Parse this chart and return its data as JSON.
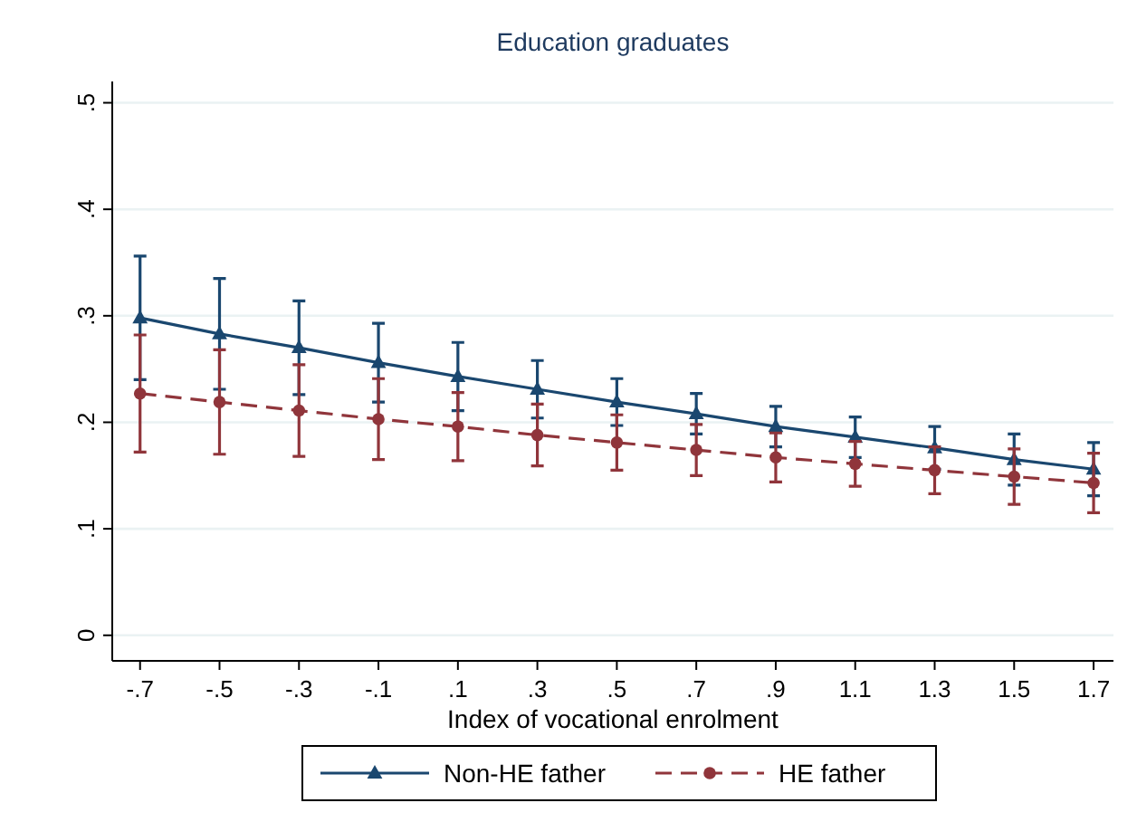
{
  "chart_data": {
    "type": "line",
    "title": "Education graduates",
    "xlabel": "Index of vocational enrolment",
    "x": [
      -0.7,
      -0.5,
      -0.3,
      -0.1,
      0.1,
      0.3,
      0.5,
      0.7,
      0.9,
      1.1,
      1.3,
      1.5,
      1.7
    ],
    "xlim": [
      -0.77,
      1.75
    ],
    "xticks": [
      {
        "value": -0.7,
        "label": "-.7"
      },
      {
        "value": -0.5,
        "label": "-.5"
      },
      {
        "value": -0.3,
        "label": "-.3"
      },
      {
        "value": -0.1,
        "label": "-.1"
      },
      {
        "value": 0.1,
        "label": ".1"
      },
      {
        "value": 0.3,
        "label": ".3"
      },
      {
        "value": 0.5,
        "label": ".5"
      },
      {
        "value": 0.7,
        "label": ".7"
      },
      {
        "value": 0.9,
        "label": ".9"
      },
      {
        "value": 1.1,
        "label": "1.1"
      },
      {
        "value": 1.3,
        "label": "1.3"
      },
      {
        "value": 1.5,
        "label": "1.5"
      },
      {
        "value": 1.7,
        "label": "1.7"
      }
    ],
    "ylim": [
      -0.024,
      0.52
    ],
    "yticks": [
      0,
      {
        "value": 0.1,
        "label": ".1"
      },
      {
        "value": 0.2,
        "label": ".2"
      },
      {
        "value": 0.3,
        "label": ".3"
      },
      {
        "value": 0.4,
        "label": ".4"
      },
      {
        "value": 0.5,
        "label": ".5"
      }
    ],
    "grid": "y",
    "legend": "bottom",
    "series": [
      {
        "name": "Non-HE father",
        "color": "#1a476f",
        "marker": "triangle",
        "line_style": "solid",
        "values": [
          0.298,
          0.283,
          0.27,
          0.256,
          0.243,
          0.231,
          0.219,
          0.208,
          0.196,
          0.186,
          0.176,
          0.165,
          0.156
        ],
        "errors": [
          0.058,
          0.052,
          0.044,
          0.037,
          0.032,
          0.027,
          0.022,
          0.019,
          0.019,
          0.019,
          0.02,
          0.024,
          0.025
        ]
      },
      {
        "name": "HE father",
        "color": "#90353b",
        "marker": "circle",
        "line_style": "dashed",
        "values": [
          0.227,
          0.219,
          0.211,
          0.203,
          0.196,
          0.188,
          0.181,
          0.174,
          0.167,
          0.161,
          0.155,
          0.149,
          0.143
        ],
        "errors": [
          0.055,
          0.049,
          0.043,
          0.038,
          0.032,
          0.029,
          0.026,
          0.024,
          0.023,
          0.021,
          0.022,
          0.026,
          0.028
        ]
      }
    ]
  }
}
